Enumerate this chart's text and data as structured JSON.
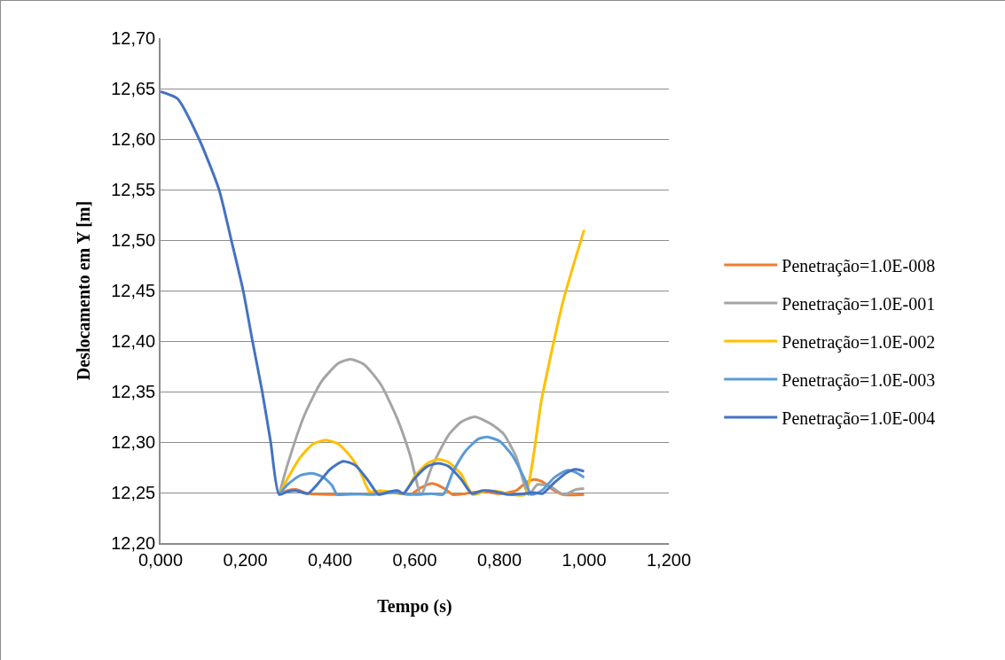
{
  "chart_data": {
    "type": "line",
    "xlabel": "Tempo (s)",
    "ylabel": "Deslocamento em Y [m]",
    "xlim": [
      0,
      1.2
    ],
    "ylim": [
      12.2,
      12.7
    ],
    "xticks": [
      {
        "value": 0,
        "label": "0,000"
      },
      {
        "value": 0.2,
        "label": "0,200"
      },
      {
        "value": 0.4,
        "label": "0,400"
      },
      {
        "value": 0.6,
        "label": "0,600"
      },
      {
        "value": 0.8,
        "label": "0,800"
      },
      {
        "value": 1.0,
        "label": "1,000"
      },
      {
        "value": 1.2,
        "label": "1,200"
      }
    ],
    "yticks": [
      {
        "value": 12.2,
        "label": "12,20"
      },
      {
        "value": 12.25,
        "label": "12,25"
      },
      {
        "value": 12.3,
        "label": "12,30"
      },
      {
        "value": 12.35,
        "label": "12,35"
      },
      {
        "value": 12.4,
        "label": "12,40"
      },
      {
        "value": 12.45,
        "label": "12,45"
      },
      {
        "value": 12.5,
        "label": "12,50"
      },
      {
        "value": 12.55,
        "label": "12,55"
      },
      {
        "value": 12.6,
        "label": "12,60"
      },
      {
        "value": 12.65,
        "label": "12,65"
      },
      {
        "value": 12.7,
        "label": "12,70"
      }
    ],
    "grid": "y",
    "legend": "right",
    "marker": "none",
    "line_style": "solid",
    "series": [
      {
        "name": "Penetração=1.0E-008",
        "color": "#ed7d31",
        "x": [
          0.28,
          0.3,
          0.32,
          0.348,
          0.4,
          0.5,
          0.55,
          0.59,
          0.615,
          0.642,
          0.67,
          0.69,
          0.72,
          0.76,
          0.8,
          0.84,
          0.86,
          0.88,
          0.9,
          0.93,
          0.95,
          1.0
        ],
        "values": [
          12.248,
          12.252,
          12.253,
          12.249,
          12.248,
          12.249,
          12.25,
          12.248,
          12.255,
          12.259,
          12.254,
          12.248,
          12.249,
          12.251,
          12.249,
          12.252,
          12.259,
          12.263,
          12.261,
          12.252,
          12.248,
          12.248
        ]
      },
      {
        "name": "Penetração=1.0E-001",
        "color": "#a5a5a5",
        "x": [
          0.28,
          0.3,
          0.34,
          0.38,
          0.42,
          0.448,
          0.48,
          0.52,
          0.56,
          0.59,
          0.615,
          0.64,
          0.68,
          0.71,
          0.742,
          0.78,
          0.81,
          0.84,
          0.869,
          0.89,
          0.92,
          0.952,
          0.98,
          1.0
        ],
        "values": [
          12.248,
          12.278,
          12.327,
          12.36,
          12.378,
          12.382,
          12.377,
          12.357,
          12.322,
          12.286,
          12.248,
          12.275,
          12.307,
          12.32,
          12.325,
          12.318,
          12.308,
          12.285,
          12.248,
          12.258,
          12.256,
          12.248,
          12.253,
          12.254
        ]
      },
      {
        "name": "Penetração=1.0E-002",
        "color": "#ffc000",
        "x": [
          0.28,
          0.3,
          0.33,
          0.36,
          0.39,
          0.42,
          0.45,
          0.47,
          0.494,
          0.52,
          0.55,
          0.575,
          0.6,
          0.63,
          0.656,
          0.68,
          0.71,
          0.737,
          0.77,
          0.8,
          0.83,
          0.86,
          0.9,
          0.95,
          1.0
        ],
        "values": [
          12.248,
          12.264,
          12.285,
          12.298,
          12.302,
          12.298,
          12.285,
          12.272,
          12.251,
          12.252,
          12.25,
          12.249,
          12.266,
          12.279,
          12.283,
          12.28,
          12.268,
          12.248,
          12.252,
          12.251,
          12.248,
          12.248,
          12.343,
          12.439,
          12.51
        ]
      },
      {
        "name": "Penetração=1.0E-003",
        "color": "#5b9bd5",
        "x": [
          0.28,
          0.3,
          0.33,
          0.358,
          0.385,
          0.405,
          0.417,
          0.45,
          0.5,
          0.55,
          0.6,
          0.64,
          0.667,
          0.69,
          0.72,
          0.75,
          0.771,
          0.8,
          0.83,
          0.86,
          0.875,
          0.9,
          0.93,
          0.96,
          0.98,
          1.0
        ],
        "values": [
          12.248,
          12.258,
          12.267,
          12.269,
          12.265,
          12.257,
          12.248,
          12.249,
          12.248,
          12.25,
          12.248,
          12.249,
          12.248,
          12.27,
          12.291,
          12.303,
          12.305,
          12.301,
          12.287,
          12.263,
          12.248,
          12.252,
          12.265,
          12.272,
          12.27,
          12.265
        ]
      },
      {
        "name": "Penetração=1.0E-004",
        "color": "#4472c4",
        "x": [
          0,
          0.04,
          0.091,
          0.138,
          0.167,
          0.195,
          0.217,
          0.24,
          0.26,
          0.28,
          0.3,
          0.32,
          0.348,
          0.37,
          0.4,
          0.431,
          0.46,
          0.49,
          0.515,
          0.54,
          0.56,
          0.573,
          0.6,
          0.63,
          0.656,
          0.68,
          0.71,
          0.735,
          0.76,
          0.79,
          0.82,
          0.86,
          0.88,
          0.902,
          0.93,
          0.96,
          0.98,
          1.0
        ],
        "values": [
          12.647,
          12.64,
          12.6,
          12.55,
          12.5,
          12.45,
          12.4,
          12.35,
          12.3,
          12.248,
          12.251,
          12.252,
          12.249,
          12.258,
          12.273,
          12.281,
          12.277,
          12.262,
          12.248,
          12.251,
          12.252,
          12.249,
          12.264,
          12.276,
          12.279,
          12.276,
          12.263,
          12.249,
          12.252,
          12.251,
          12.248,
          12.249,
          12.25,
          12.249,
          12.26,
          12.27,
          12.273,
          12.271
        ]
      }
    ]
  }
}
